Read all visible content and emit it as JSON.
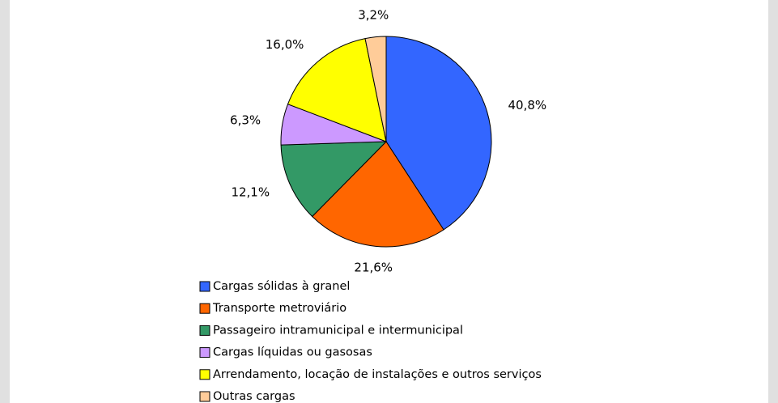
{
  "chart_data": {
    "type": "pie",
    "categories": [
      "Cargas sólidas à granel",
      "Transporte  metroviário",
      "Passageiro intramunicipal e intermunicipal",
      "Cargas líquidas ou gasosas",
      "Arrendamento, locação de instalações e outros serviços",
      "Outras cargas"
    ],
    "values": [
      40.8,
      21.6,
      12.1,
      6.3,
      16.0,
      3.2
    ],
    "value_labels": [
      "40,8%",
      "21,6%",
      "12,1%",
      "6,3%",
      "16,0%",
      "3,2%"
    ],
    "colors": [
      "#3366ff",
      "#ff6600",
      "#339966",
      "#cc99ff",
      "#ffff00",
      "#ffcc99"
    ],
    "legend": "bottom"
  }
}
